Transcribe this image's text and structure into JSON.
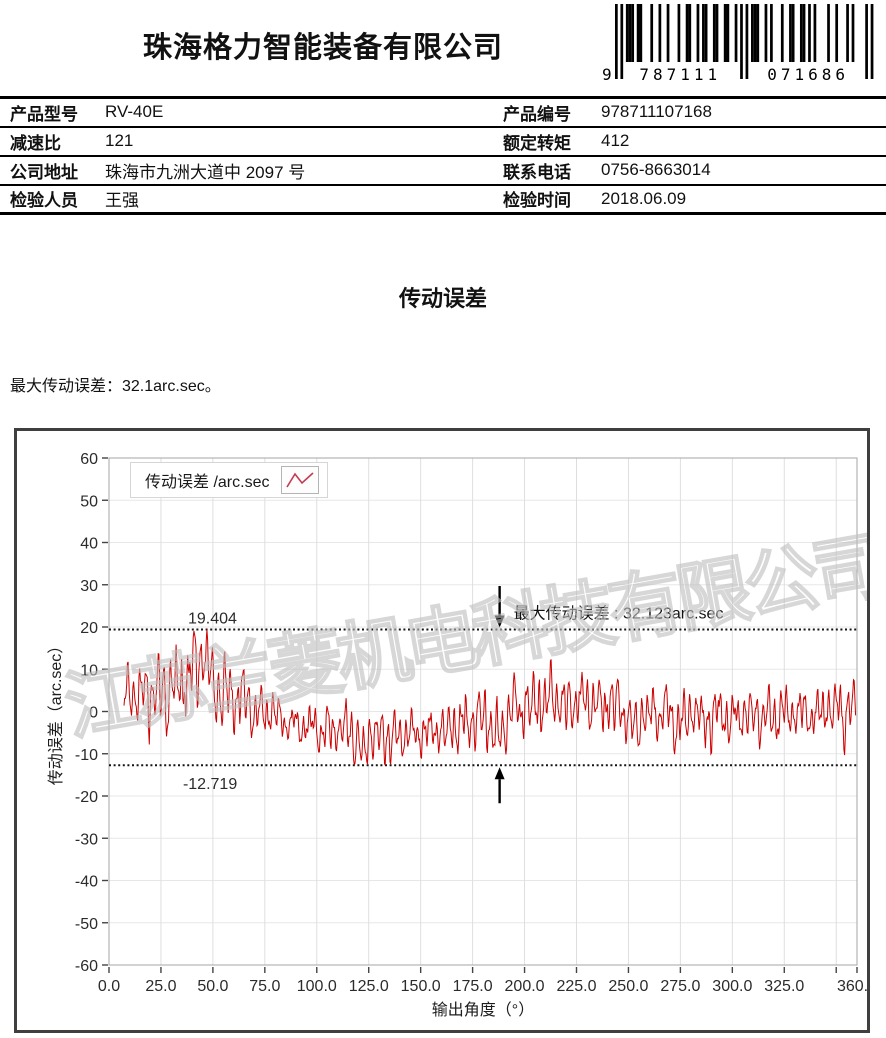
{
  "header": {
    "company": "珠海格力智能装备有限公司"
  },
  "barcode": {
    "prefix": "9",
    "left_text": "787111",
    "right_text": "071686",
    "pattern": "10101110110001001001000100110010110011001100101010111001010001001100110101000010010001010000101"
  },
  "info_table": {
    "rows": [
      {
        "l1": "产品型号",
        "v1": "RV-40E",
        "l2": "产品编号",
        "v2": "978711107168"
      },
      {
        "l1": "减速比",
        "v1": "121",
        "l2": "额定转矩",
        "v2": "412"
      },
      {
        "l1": "公司地址",
        "v1": "珠海市九洲大道中 2097 号",
        "l2": "联系电话",
        "v2": "0756-8663014"
      },
      {
        "l1": "检验人员",
        "v1": "王强",
        "l2": "检验时间",
        "v2": "2018.06.09"
      }
    ]
  },
  "section": {
    "title": "传动误差",
    "max_line": "最大传动误差：32.1arc.sec。"
  },
  "chart_data": {
    "type": "line",
    "title": "传动误差",
    "xlabel": "输出角度（°）",
    "ylabel": "传动误差（arc.sec）",
    "xlim": [
      0,
      360
    ],
    "ylim": [
      -60,
      60
    ],
    "grid": true,
    "legend_label": "传动误差 /arc.sec",
    "legend_position": "top-left",
    "watermark": "江苏兰菱机电科技有限公司",
    "x_tick_values": [
      0,
      25,
      50,
      75,
      100,
      125,
      150,
      175,
      200,
      225,
      250,
      275,
      300,
      325,
      360
    ],
    "x_tick_labels": [
      "0.0",
      "25.0",
      "50.0",
      "75.0",
      "100.0",
      "125.0",
      "150.0",
      "175.0",
      "200.0",
      "225.0",
      "250.0",
      "275.0",
      "300.0",
      "325.0",
      "360.0"
    ],
    "x_unlabeled_ticks": [
      350
    ],
    "y_tick_values": [
      60,
      50,
      40,
      30,
      20,
      10,
      0,
      -10,
      -20,
      -30,
      -40,
      -50,
      -60
    ],
    "y_tick_labels": [
      "60",
      "50",
      "40",
      "30",
      "20",
      "10",
      "0",
      "-10",
      "-20",
      "-30",
      "-40",
      "-50",
      "-60"
    ],
    "reference": {
      "max_value": 19.404,
      "max_label": "19.404",
      "min_value": -12.719,
      "min_label": "-12.719",
      "label_x_deg": 38
    },
    "annotation": {
      "text": "最大传动误差 : 32.123arc.sec",
      "arrow_x_deg": 188
    },
    "series": [
      {
        "name": "传动误差 /arc.sec",
        "color": "#cc0000",
        "x_start": 7.2,
        "x_end": 359.6,
        "step": 0.33,
        "seed": 20180609,
        "observed_max": 19.404,
        "observed_min": -12.719,
        "mean_points": [
          [
            7,
            4.5
          ],
          [
            30,
            5
          ],
          [
            45,
            5.5
          ],
          [
            60,
            3.5
          ],
          [
            80,
            0.5
          ],
          [
            100,
            -2
          ],
          [
            125,
            -3
          ],
          [
            160,
            -2.5
          ],
          [
            175,
            -0.5
          ],
          [
            195,
            2
          ],
          [
            220,
            3
          ],
          [
            240,
            2.5
          ],
          [
            258,
            0.5
          ],
          [
            285,
            0
          ],
          [
            310,
            0.5
          ],
          [
            335,
            1
          ],
          [
            360,
            1.5
          ]
        ],
        "amp_points": [
          [
            7,
            6
          ],
          [
            25,
            8.5
          ],
          [
            45,
            9
          ],
          [
            60,
            7
          ],
          [
            75,
            4.5
          ],
          [
            90,
            4
          ],
          [
            110,
            5.5
          ],
          [
            130,
            6
          ],
          [
            150,
            5
          ],
          [
            170,
            5.5
          ],
          [
            190,
            6.5
          ],
          [
            210,
            7
          ],
          [
            230,
            6.5
          ],
          [
            250,
            6
          ],
          [
            270,
            6
          ],
          [
            290,
            6
          ],
          [
            315,
            5
          ],
          [
            335,
            5.5
          ],
          [
            360,
            6.5
          ]
        ]
      }
    ]
  }
}
